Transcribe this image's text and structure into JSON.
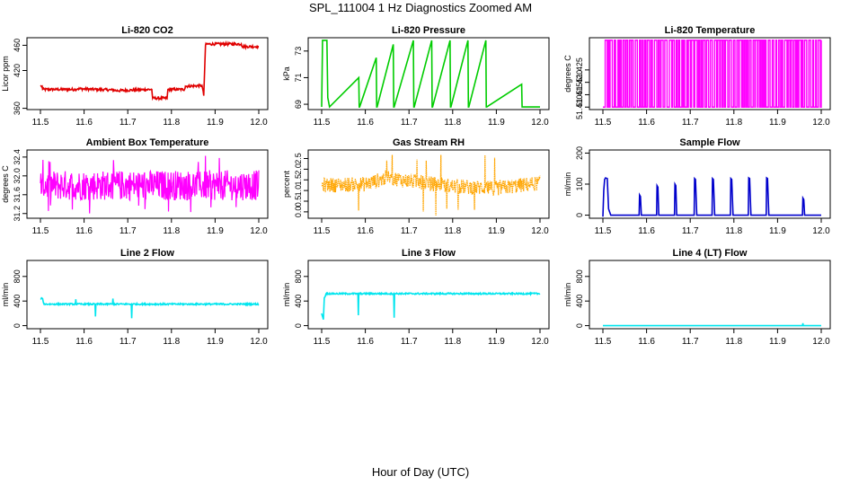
{
  "page": {
    "title": "SPL_111004  1 Hz Diagnostics Zoomed AM",
    "xaxis_label": "Hour of Day (UTC)"
  },
  "chart_data": [
    {
      "type": "line",
      "title": "Li-820 CO2",
      "ylabel": "Licor ppm",
      "color": "#e00000",
      "xlim": [
        11.5,
        12.0
      ],
      "ylim": [
        358,
        472
      ],
      "xticks": [
        "11.5",
        "11.6",
        "11.7",
        "11.8",
        "11.9",
        "12.0"
      ],
      "yticks": [
        {
          "v": 360,
          "label": "360"
        },
        {
          "v": 420,
          "label": "420"
        },
        {
          "v": 460,
          "label": "460"
        }
      ],
      "noise": 2,
      "series": [
        {
          "x": [
            11.5,
            11.504,
            11.505,
            11.58,
            11.585,
            11.67,
            11.672,
            11.755,
            11.757,
            11.79,
            11.792,
            11.83,
            11.832,
            11.87,
            11.874,
            11.878,
            11.88,
            11.96,
            11.962,
            12.0
          ],
          "y": [
            395,
            395,
            390,
            390,
            391,
            389,
            388,
            390,
            376,
            376,
            390,
            390,
            395,
            396,
            380,
            460,
            462,
            462,
            458,
            458
          ]
        }
      ]
    },
    {
      "type": "line",
      "title": "Li-820 Pressure",
      "ylabel": "kPa",
      "color": "#00cc00",
      "xlim": [
        11.5,
        12.0
      ],
      "ylim": [
        68.6,
        74.0
      ],
      "xticks": [
        "11.5",
        "11.6",
        "11.7",
        "11.8",
        "11.9",
        "12.0"
      ],
      "yticks": [
        {
          "v": 69,
          "label": "69"
        },
        {
          "v": 71,
          "label": "71"
        },
        {
          "v": 73,
          "label": "73"
        }
      ],
      "noise": 0,
      "series": [
        {
          "x": [
            11.5,
            11.502,
            11.504,
            11.512,
            11.514,
            11.518,
            11.585,
            11.586,
            11.587,
            11.625,
            11.626,
            11.627,
            11.664,
            11.665,
            11.666,
            11.71,
            11.711,
            11.712,
            11.752,
            11.753,
            11.754,
            11.794,
            11.795,
            11.796,
            11.835,
            11.836,
            11.837,
            11.876,
            11.877,
            11.878,
            11.958,
            11.959,
            11.96,
            12.0
          ],
          "y": [
            68.8,
            73.8,
            73.8,
            73.8,
            69.5,
            68.8,
            71.0,
            68.8,
            68.8,
            72.5,
            68.8,
            68.8,
            73.5,
            68.8,
            68.8,
            73.8,
            68.8,
            68.8,
            73.8,
            68.8,
            68.8,
            73.8,
            68.8,
            68.8,
            73.8,
            68.8,
            68.8,
            73.8,
            68.8,
            68.8,
            70.5,
            68.8,
            68.8,
            68.8
          ]
        }
      ]
    },
    {
      "type": "line",
      "title": "Li-820 Temperature",
      "ylabel": "degrees C",
      "color": "#ff00ff",
      "xlim": [
        11.5,
        12.0
      ],
      "ylim": [
        51.409,
        51.438
      ],
      "xticks": [
        "11.5",
        "11.6",
        "11.7",
        "11.8",
        "11.9",
        "12.0"
      ],
      "yticks": [
        {
          "v": 51.41,
          "label": "51.410"
        },
        {
          "v": 51.415,
          "label": "51.415"
        },
        {
          "v": 51.42,
          "label": "51.420"
        },
        {
          "v": 51.425,
          "label": "51.425"
        }
      ],
      "mode": "toggle",
      "series": [
        {
          "low": 51.41,
          "high": 51.437,
          "x_start": 11.5,
          "x_end": 12.0
        }
      ]
    },
    {
      "type": "line",
      "title": "Ambient Box Temperature",
      "ylabel": "degrees C",
      "color": "#ff00ff",
      "xlim": [
        11.5,
        12.0
      ],
      "ylim": [
        31.1,
        32.55
      ],
      "xticks": [
        "11.5",
        "11.6",
        "11.7",
        "11.8",
        "11.9",
        "12.0"
      ],
      "yticks": [
        {
          "v": 31.2,
          "label": "31.2"
        },
        {
          "v": 31.6,
          "label": "31.6"
        },
        {
          "v": 32.0,
          "label": "32.0"
        },
        {
          "v": 32.4,
          "label": "32.4"
        }
      ],
      "mode": "noiseband",
      "series": [
        {
          "center": 31.8,
          "spread": 0.32,
          "spike_low": 31.2,
          "spike_high": 32.5,
          "x_start": 11.5,
          "x_end": 12.0
        }
      ]
    },
    {
      "type": "scatter",
      "title": "Gas Stream RH",
      "ylabel": "percent",
      "color": "#ffa500",
      "xlim": [
        11.5,
        12.0
      ],
      "ylim": [
        -0.3,
        2.9
      ],
      "xticks": [
        "11.5",
        "11.6",
        "11.7",
        "11.8",
        "11.9",
        "12.0"
      ],
      "yticks": [
        {
          "v": 0.0,
          "label": "0.0"
        },
        {
          "v": 0.5,
          "label": "0.5"
        },
        {
          "v": 1.0,
          "label": "1.0"
        },
        {
          "v": 1.5,
          "label": "1.5"
        },
        {
          "v": 2.0,
          "label": "2.0"
        },
        {
          "v": 2.5,
          "label": "2.5"
        }
      ],
      "mode": "noiseband",
      "series": [
        {
          "center_points": [
            [
              11.5,
              1.25
            ],
            [
              11.6,
              1.3
            ],
            [
              11.65,
              1.6
            ],
            [
              11.7,
              1.45
            ],
            [
              11.8,
              1.2
            ],
            [
              11.9,
              1.1
            ],
            [
              12.0,
              1.35
            ]
          ],
          "spread": 0.35,
          "spike_low": -0.2,
          "spike_high": 2.7,
          "x_start": 11.5,
          "x_end": 12.0
        }
      ]
    },
    {
      "type": "line",
      "title": "Sample Flow",
      "ylabel": "ml/min",
      "color": "#0000cc",
      "xlim": [
        11.5,
        12.0
      ],
      "ylim": [
        -10,
        210
      ],
      "xticks": [
        "11.5",
        "11.6",
        "11.7",
        "11.8",
        "11.9",
        "12.0"
      ],
      "yticks": [
        {
          "v": 0,
          "label": "0"
        },
        {
          "v": 100,
          "label": "100"
        },
        {
          "v": 200,
          "label": "200"
        }
      ],
      "noise": 0,
      "series": [
        {
          "x": [
            11.5,
            11.502,
            11.504,
            11.506,
            11.51,
            11.513,
            11.518,
            11.583,
            11.584,
            11.586,
            11.588,
            11.623,
            11.624,
            11.626,
            11.628,
            11.664,
            11.665,
            11.667,
            11.669,
            11.709,
            11.71,
            11.712,
            11.715,
            11.75,
            11.751,
            11.753,
            11.756,
            11.792,
            11.793,
            11.795,
            11.798,
            11.833,
            11.834,
            11.836,
            11.839,
            11.874,
            11.875,
            11.877,
            11.88,
            11.957,
            11.958,
            11.96,
            11.962,
            12.0
          ],
          "y": [
            -5,
            80,
            115,
            120,
            118,
            20,
            0,
            0,
            65,
            60,
            0,
            0,
            95,
            90,
            0,
            0,
            100,
            95,
            0,
            0,
            118,
            115,
            0,
            0,
            118,
            115,
            0,
            0,
            118,
            115,
            0,
            0,
            120,
            118,
            0,
            0,
            120,
            118,
            0,
            0,
            55,
            50,
            0,
            0
          ]
        }
      ]
    },
    {
      "type": "line",
      "title": "Line 2 Flow",
      "ylabel": "ml/min",
      "color": "#00e5ee",
      "xlim": [
        11.5,
        12.0
      ],
      "ylim": [
        -50,
        1060
      ],
      "xticks": [
        "11.5",
        "11.6",
        "11.7",
        "11.8",
        "11.9",
        "12.0"
      ],
      "yticks": [
        {
          "v": 0,
          "label": "0"
        },
        {
          "v": 400,
          "label": "400"
        },
        {
          "v": 800,
          "label": "800"
        }
      ],
      "noise": 12,
      "series": [
        {
          "x": [
            11.5,
            11.505,
            11.508,
            11.58,
            11.581,
            11.582,
            11.625,
            11.626,
            11.627,
            11.665,
            11.666,
            11.667,
            11.708,
            11.709,
            11.71,
            12.0
          ],
          "y": [
            440,
            440,
            350,
            350,
            430,
            350,
            350,
            150,
            350,
            350,
            440,
            350,
            350,
            120,
            350,
            350
          ]
        }
      ]
    },
    {
      "type": "line",
      "title": "Line 3 Flow",
      "ylabel": "ml/min",
      "color": "#00e5ee",
      "xlim": [
        11.5,
        12.0
      ],
      "ylim": [
        -50,
        1060
      ],
      "xticks": [
        "11.5",
        "11.6",
        "11.7",
        "11.8",
        "11.9",
        "12.0"
      ],
      "yticks": [
        {
          "v": 0,
          "label": "0"
        },
        {
          "v": 400,
          "label": "400"
        },
        {
          "v": 800,
          "label": "800"
        }
      ],
      "noise": 12,
      "series": [
        {
          "x": [
            11.5,
            11.502,
            11.504,
            11.506,
            11.51,
            11.583,
            11.584,
            11.585,
            11.665,
            11.666,
            11.667,
            12.0
          ],
          "y": [
            200,
            150,
            100,
            450,
            520,
            520,
            170,
            520,
            520,
            130,
            520,
            520
          ]
        }
      ]
    },
    {
      "type": "line",
      "title": "Line 4 (LT) Flow",
      "ylabel": "ml/min",
      "color": "#00e5ee",
      "xlim": [
        11.5,
        12.0
      ],
      "ylim": [
        -50,
        1060
      ],
      "xticks": [
        "11.5",
        "11.6",
        "11.7",
        "11.8",
        "11.9",
        "12.0"
      ],
      "yticks": [
        {
          "v": 0,
          "label": "0"
        },
        {
          "v": 400,
          "label": "400"
        },
        {
          "v": 800,
          "label": "800"
        }
      ],
      "noise": 0,
      "series": [
        {
          "x": [
            11.5,
            11.957,
            11.958,
            11.959,
            11.96,
            12.0
          ],
          "y": [
            0,
            0,
            40,
            0,
            0,
            0
          ]
        }
      ]
    }
  ]
}
